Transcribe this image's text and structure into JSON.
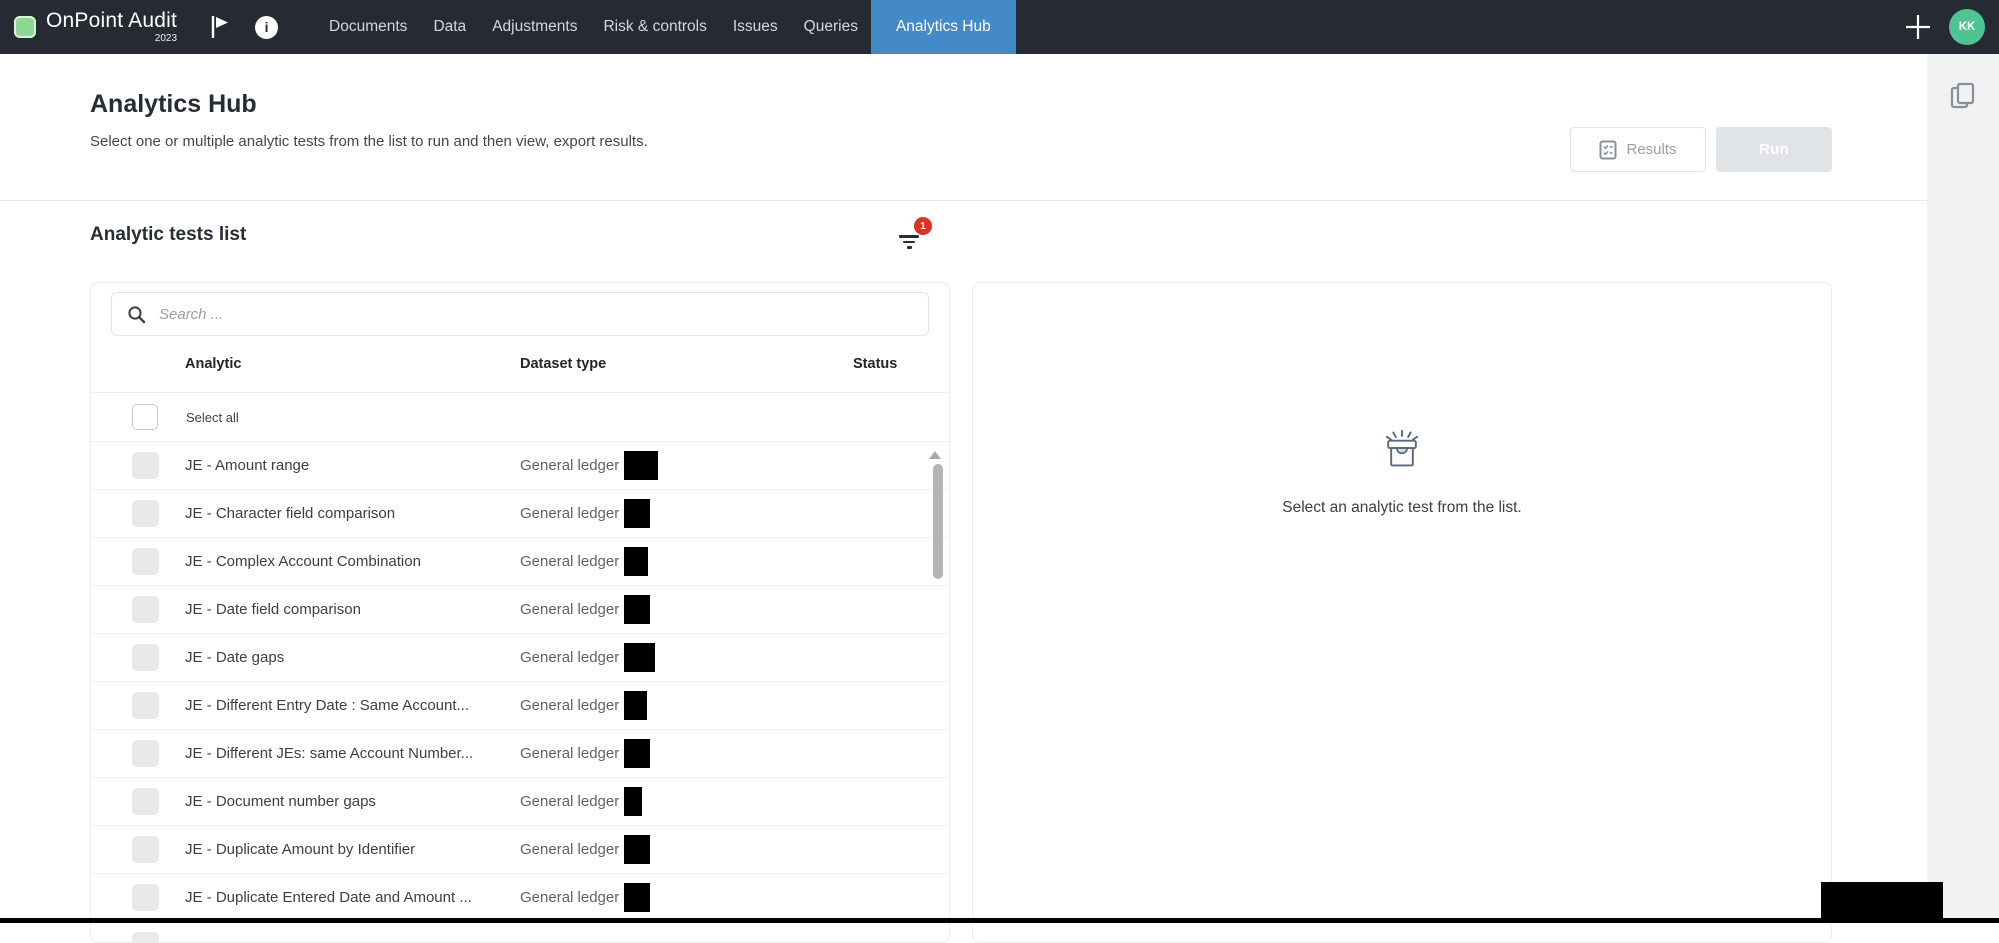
{
  "topbar": {
    "brand": {
      "name": "OnPoint Audit",
      "year": "2023"
    },
    "nav": [
      {
        "label": "Documents",
        "active": false
      },
      {
        "label": "Data",
        "active": false
      },
      {
        "label": "Adjustments",
        "active": false
      },
      {
        "label": "Risk & controls",
        "active": false
      },
      {
        "label": "Issues",
        "active": false
      },
      {
        "label": "Queries",
        "active": false
      },
      {
        "label": "Analytics Hub",
        "active": true
      }
    ],
    "avatar_initials": "KK"
  },
  "header": {
    "title": "Analytics Hub",
    "subtitle": "Select one or multiple analytic tests from the list to run and then view, export results.",
    "results_label": "Results",
    "run_label": "Run"
  },
  "section": {
    "heading": "Analytic tests list",
    "filter_badge": "1"
  },
  "list": {
    "search_placeholder": "Search ...",
    "columns": [
      "Analytic",
      "Dataset type",
      "Status"
    ],
    "select_all_label": "Select all",
    "rows": [
      {
        "name": "JE - Amount range",
        "dataset": "General ledger",
        "redact_w": 34
      },
      {
        "name": "JE - Character field comparison",
        "dataset": "General ledger",
        "redact_w": 26
      },
      {
        "name": "JE - Complex Account Combination",
        "dataset": "General ledger",
        "redact_w": 24
      },
      {
        "name": "JE - Date field comparison",
        "dataset": "General ledger",
        "redact_w": 26
      },
      {
        "name": "JE - Date gaps",
        "dataset": "General ledger",
        "redact_w": 31
      },
      {
        "name": "JE - Different Entry Date : Same Account...",
        "dataset": "General ledger",
        "redact_w": 23
      },
      {
        "name": "JE - Different JEs: same Account Number...",
        "dataset": "General ledger",
        "redact_w": 26
      },
      {
        "name": "JE - Document number gaps",
        "dataset": "General ledger",
        "redact_w": 18
      },
      {
        "name": "JE - Duplicate Amount by Identifier",
        "dataset": "General ledger",
        "redact_w": 26
      },
      {
        "name": "JE - Duplicate Entered Date and Amount ...",
        "dataset": "General ledger",
        "redact_w": 26
      }
    ]
  },
  "detail": {
    "empty_text": "Select an analytic test from the list."
  },
  "colors": {
    "topbar_bg": "#262b33",
    "active_tab_blue": "#4489c8",
    "brand_green": "#8fd694",
    "avatar_green": "#4fc493",
    "badge_red": "#dc3227"
  }
}
